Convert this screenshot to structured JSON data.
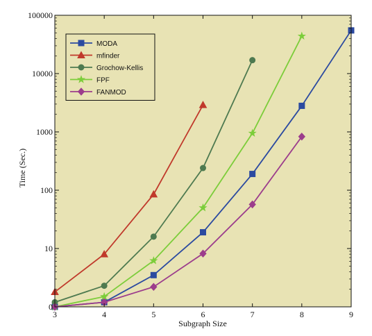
{
  "chart_data": {
    "type": "line",
    "title": "",
    "xlabel": "Subgraph Size",
    "ylabel": "Time (Sec.)",
    "xlim": [
      3,
      9
    ],
    "ylim": [
      1,
      100000
    ],
    "yscale": "log",
    "grid": false,
    "legend_position": "top-left",
    "background": "#e8e3b4",
    "x_ticks": [
      "3",
      "4",
      "5",
      "6",
      "7",
      "8",
      "9"
    ],
    "y_ticks": [
      {
        "value": 1,
        "label": "0"
      },
      {
        "value": 10,
        "label": "10"
      },
      {
        "value": 100,
        "label": "100"
      },
      {
        "value": 1000,
        "label": "1000"
      },
      {
        "value": 10000,
        "label": "10000"
      },
      {
        "value": 100000,
        "label": "100000"
      }
    ],
    "series": [
      {
        "name": "MODA",
        "color": "#2b4aa0",
        "marker": "square",
        "x": [
          3,
          4,
          5,
          6,
          7,
          8,
          9
        ],
        "y": [
          1.0,
          1.2,
          3.5,
          19,
          190,
          2800,
          55000
        ]
      },
      {
        "name": "mfinder",
        "color": "#c0392b",
        "marker": "triangle",
        "x": [
          3,
          4,
          5,
          6
        ],
        "y": [
          1.8,
          8,
          85,
          2900
        ]
      },
      {
        "name": "Grochow-Kellis",
        "color": "#4e7a50",
        "marker": "circle",
        "x": [
          3,
          4,
          5,
          6,
          7
        ],
        "y": [
          1.2,
          2.3,
          16,
          240,
          17000
        ]
      },
      {
        "name": "FPF",
        "color": "#7ccd3a",
        "marker": "star",
        "x": [
          3,
          4,
          5,
          6,
          7,
          8
        ],
        "y": [
          1.0,
          1.5,
          6.2,
          50,
          950,
          44000
        ]
      },
      {
        "name": "FANMOD",
        "color": "#9c3d8c",
        "marker": "diamond",
        "x": [
          3,
          4,
          5,
          6,
          7,
          8
        ],
        "y": [
          1.0,
          1.2,
          2.2,
          8.2,
          57,
          830
        ]
      }
    ]
  }
}
